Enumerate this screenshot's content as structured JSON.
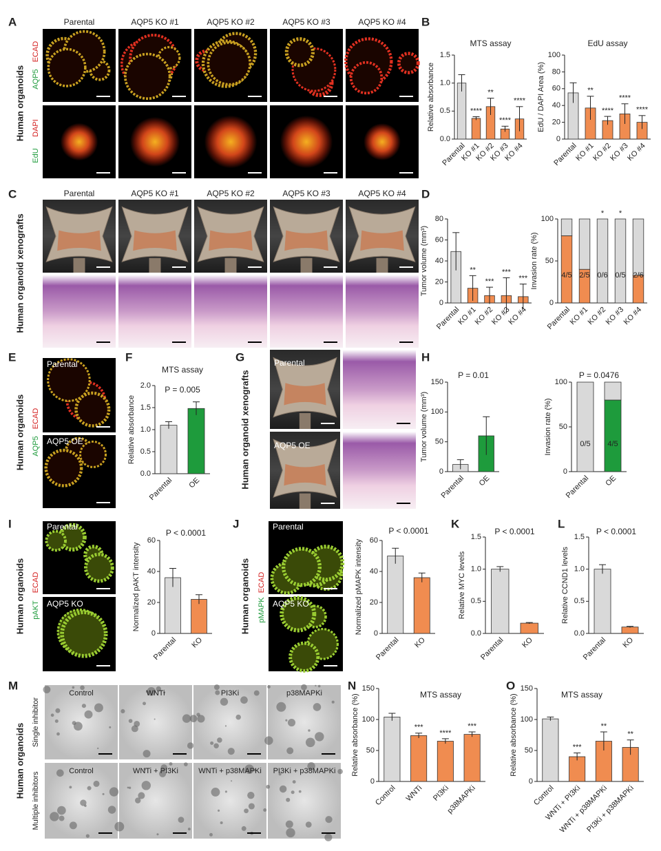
{
  "figure": {
    "panels": [
      "A",
      "B",
      "C",
      "D",
      "E",
      "F",
      "G",
      "H",
      "I",
      "J",
      "K",
      "L",
      "M",
      "N",
      "O"
    ],
    "organoid_columns": [
      "Parental",
      "AQP5 KO #1",
      "AQP5 KO #2",
      "AQP5 KO #3",
      "AQP5 KO #4"
    ],
    "xenograft_columns": [
      "Parental",
      "AQP5 KO #1",
      "AQP5 KO #2",
      "AQP5 KO #3",
      "AQP5 KO #4"
    ],
    "row_labels": {
      "a": "Human organoids",
      "c": "Human organoid xenografts",
      "e": "Human organoids",
      "g": "Human organoid xenografts",
      "i": "Human organoids",
      "j": "Human organoids",
      "m": "Human organoids"
    },
    "channel_labels": {
      "a_top": [
        "AQP5",
        "ECAD"
      ],
      "a_bottom": [
        "EdU",
        "DAPI"
      ],
      "e": [
        "AQP5",
        "ECAD"
      ],
      "i": [
        "pAKT",
        "ECAD"
      ],
      "j": [
        "pMAPK",
        "ECAD"
      ]
    },
    "image_labels": {
      "e": [
        "Parental",
        "AQP5 OE"
      ],
      "g": [
        "Parental",
        "AQP5 OE"
      ],
      "i": [
        "Parental",
        "AQP5 KO"
      ],
      "j": [
        "Parental",
        "AQP5 KO"
      ]
    },
    "m_rows": [
      "Single inhibitor",
      "Multiple inhibitors"
    ],
    "m_single": [
      "Control",
      "WNTi",
      "PI3Ki",
      "p38MAPKi"
    ],
    "m_multiple": [
      "Control",
      "WNTi + PI3Ki",
      "WNTi + p38MAPKi",
      "PI3Ki + p38MAPKi"
    ]
  },
  "chart_data": [
    {
      "type": "bar",
      "title": "MTS assay",
      "ylabel": "Relative absorbance",
      "categories": [
        "Parental",
        "KO #1",
        "KO #2",
        "KO #3",
        "KO #4"
      ],
      "values": [
        1.0,
        0.37,
        0.58,
        0.18,
        0.36
      ],
      "errors": [
        0.15,
        0.03,
        0.15,
        0.05,
        0.22
      ],
      "colors": [
        "#d9d9d9",
        "#f08c50",
        "#f08c50",
        "#f08c50",
        "#f08c50"
      ],
      "significance": [
        null,
        "****",
        "**",
        "****",
        "****"
      ],
      "ylim": [
        0,
        1.5
      ],
      "yticks": [
        {
          "value": 0,
          "label": "0.0"
        },
        {
          "value": 0.5,
          "label": "0.5"
        },
        {
          "value": 1,
          "label": "1.0"
        },
        {
          "value": 1.5,
          "label": "1.5"
        }
      ]
    },
    {
      "type": "bar",
      "title": "EdU assay",
      "ylabel": "EdU / DAPI Area (%)",
      "categories": [
        "Parental",
        "KO #1",
        "KO #2",
        "KO #3",
        "KO #4"
      ],
      "values": [
        55,
        37,
        22,
        30,
        20
      ],
      "errors": [
        12,
        14,
        5,
        12,
        8
      ],
      "colors": [
        "#d9d9d9",
        "#f08c50",
        "#f08c50",
        "#f08c50",
        "#f08c50"
      ],
      "significance": [
        null,
        "**",
        "****",
        "****",
        "****"
      ],
      "ylim": [
        0,
        100
      ],
      "yticks": [
        0,
        20,
        40,
        60,
        80,
        100
      ]
    },
    {
      "type": "bar",
      "ylabel": "Tumor volume (mm³)",
      "categories": [
        "Parental",
        "KO #1",
        "KO #2",
        "KO #3",
        "KO #4"
      ],
      "values": [
        49,
        14,
        7,
        7,
        6
      ],
      "errors": [
        18,
        12,
        8,
        17,
        12
      ],
      "colors": [
        "#d9d9d9",
        "#f08c50",
        "#f08c50",
        "#f08c50",
        "#f08c50"
      ],
      "significance": [
        null,
        "**",
        "***",
        "***",
        "***"
      ],
      "ylim": [
        0,
        80
      ],
      "yticks": [
        0,
        20,
        40,
        60,
        80
      ]
    },
    {
      "type": "stacked_bar",
      "ylabel": "Invasion rate (%)",
      "categories": [
        "Parental",
        "KO #1",
        "KO #2",
        "KO #3",
        "KO #4"
      ],
      "series": [
        {
          "colors": [
            "#f08c50",
            "#f08c50",
            "#f08c50",
            "#f08c50",
            "#f08c50"
          ],
          "values": [
            80,
            40,
            0,
            0,
            33
          ]
        },
        {
          "colors": [
            "#d9d9d9",
            "#d9d9d9",
            "#d9d9d9",
            "#d9d9d9",
            "#d9d9d9"
          ],
          "values": [
            20,
            60,
            100,
            100,
            67
          ]
        }
      ],
      "bar_labels": [
        "4/5",
        "2/5",
        "0/6",
        "0/5",
        "2/6"
      ],
      "significance": [
        null,
        null,
        "*",
        "*",
        null
      ],
      "ylim": [
        0,
        100
      ],
      "yticks": [
        0,
        50,
        100
      ]
    },
    {
      "type": "bar",
      "title": "MTS assay",
      "annotation": "P = 0.005",
      "ylabel": "Relative absorbance",
      "categories": [
        "Parental",
        "OE"
      ],
      "values": [
        1.1,
        1.48
      ],
      "errors": [
        0.08,
        0.15
      ],
      "colors": [
        "#d9d9d9",
        "#1e9b3c"
      ],
      "ylim": [
        0,
        2
      ],
      "yticks": [
        {
          "value": 0,
          "label": "0.0"
        },
        {
          "value": 0.5,
          "label": "0.5"
        },
        {
          "value": 1,
          "label": "1.0"
        },
        {
          "value": 1.5,
          "label": "1.5"
        },
        {
          "value": 2,
          "label": "2.0"
        }
      ]
    },
    {
      "type": "bar",
      "annotation": "P = 0.01",
      "ylabel": "Tumor volume (mm³)",
      "categories": [
        "Parental",
        "OE"
      ],
      "values": [
        12,
        60
      ],
      "errors": [
        8,
        32
      ],
      "colors": [
        "#d9d9d9",
        "#1e9b3c"
      ],
      "ylim": [
        0,
        150
      ],
      "yticks": [
        0,
        50,
        100,
        150
      ]
    },
    {
      "type": "stacked_bar",
      "annotation": "P = 0.0476",
      "ylabel": "Invasion rate (%)",
      "categories": [
        "Parental",
        "OE"
      ],
      "series": [
        {
          "colors": [
            "#1e9b3c",
            "#1e9b3c"
          ],
          "values": [
            0,
            80
          ]
        },
        {
          "colors": [
            "#d9d9d9",
            "#d9d9d9"
          ],
          "values": [
            100,
            20
          ]
        }
      ],
      "bar_labels": [
        "0/5",
        "4/5"
      ],
      "ylim": [
        0,
        100
      ],
      "yticks": [
        0,
        50,
        100
      ]
    },
    {
      "type": "bar",
      "annotation": "P < 0.0001",
      "ylabel": "Normalized pAKT intensity",
      "categories": [
        "Parental",
        "KO"
      ],
      "values": [
        36,
        22
      ],
      "errors": [
        6,
        3
      ],
      "colors": [
        "#d9d9d9",
        "#f08c50"
      ],
      "ylim": [
        0,
        60
      ],
      "yticks": [
        0,
        20,
        40,
        60
      ]
    },
    {
      "type": "bar",
      "annotation": "P < 0.0001",
      "ylabel": "Normalized pMAPK intensity",
      "categories": [
        "Parental",
        "KO"
      ],
      "values": [
        50,
        36
      ],
      "errors": [
        5,
        3
      ],
      "colors": [
        "#d9d9d9",
        "#f08c50"
      ],
      "ylim": [
        0,
        60
      ],
      "yticks": [
        0,
        20,
        40,
        60
      ]
    },
    {
      "type": "bar",
      "annotation": "P < 0.0001",
      "ylabel": "Relative MYC levels",
      "categories": [
        "Parental",
        "KO"
      ],
      "values": [
        1.0,
        0.16
      ],
      "errors": [
        0.04,
        0.01
      ],
      "colors": [
        "#d9d9d9",
        "#f08c50"
      ],
      "ylim": [
        0,
        1.5
      ],
      "yticks": [
        {
          "value": 0,
          "label": "0.0"
        },
        {
          "value": 0.5,
          "label": "0.5"
        },
        {
          "value": 1,
          "label": "1.0"
        },
        {
          "value": 1.5,
          "label": "1.5"
        }
      ]
    },
    {
      "type": "bar",
      "annotation": "P < 0.0001",
      "ylabel": "Relative CCND1 levels",
      "categories": [
        "Parental",
        "KO"
      ],
      "values": [
        1.0,
        0.1
      ],
      "errors": [
        0.07,
        0.01
      ],
      "colors": [
        "#d9d9d9",
        "#f08c50"
      ],
      "ylim": [
        0,
        1.5
      ],
      "yticks": [
        {
          "value": 0,
          "label": "0.0"
        },
        {
          "value": 0.5,
          "label": "0.5"
        },
        {
          "value": 1,
          "label": "1.0"
        },
        {
          "value": 1.5,
          "label": "1.5"
        }
      ]
    },
    {
      "type": "bar",
      "title": "MTS assay",
      "ylabel": "Relative absorbance (%)",
      "categories": [
        "Control",
        "WNTi",
        "PI3Ki",
        "p38MAPKi"
      ],
      "values": [
        104,
        74,
        65,
        76
      ],
      "errors": [
        6,
        4,
        4,
        4
      ],
      "colors": [
        "#d9d9d9",
        "#f08c50",
        "#f08c50",
        "#f08c50"
      ],
      "significance": [
        null,
        "***",
        "****",
        "***"
      ],
      "ylim": [
        0,
        150
      ],
      "yticks": [
        0,
        50,
        100,
        150
      ]
    },
    {
      "type": "bar",
      "title": "MTS assay",
      "ylabel": "Relative absorbance (%)",
      "categories": [
        "Control",
        "WNTi + PI3Ki",
        "WNTi + p38MAPKi",
        "PI3Ki + p38MAPKi"
      ],
      "values": [
        101,
        40,
        65,
        55
      ],
      "errors": [
        3,
        6,
        15,
        12
      ],
      "colors": [
        "#d9d9d9",
        "#f08c50",
        "#f08c50",
        "#f08c50"
      ],
      "significance": [
        null,
        "***",
        "**",
        "**"
      ],
      "ylim": [
        0,
        150
      ],
      "yticks": [
        0,
        50,
        100,
        150
      ]
    }
  ]
}
